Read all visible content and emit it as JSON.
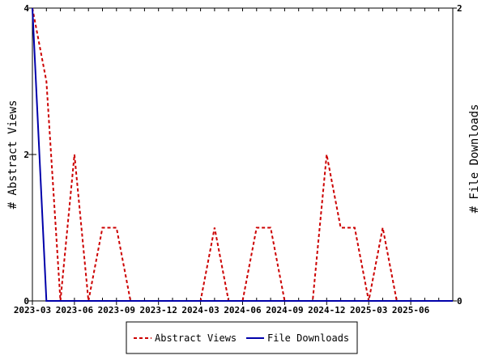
{
  "chart_data": {
    "type": "line",
    "title": "",
    "xlabel": "",
    "ylabel": "# Abstract Views",
    "y2label": "# File Downloads",
    "x_ticks": [
      "2023-03",
      "2023-06",
      "2023-09",
      "2023-12",
      "2024-03",
      "2024-06",
      "2024-09",
      "2024-12",
      "2025-03",
      "2025-06"
    ],
    "x": [
      "2023-03",
      "2023-04",
      "2023-05",
      "2023-06",
      "2023-07",
      "2023-08",
      "2023-09",
      "2023-10",
      "2023-11",
      "2023-12",
      "2024-01",
      "2024-02",
      "2024-03",
      "2024-04",
      "2024-05",
      "2024-06",
      "2024-07",
      "2024-08",
      "2024-09",
      "2024-10",
      "2024-11",
      "2024-12",
      "2025-01",
      "2025-02",
      "2025-03",
      "2025-04",
      "2025-05",
      "2025-06",
      "2025-07",
      "2025-08",
      "2025-09"
    ],
    "ylim": [
      0,
      4
    ],
    "y_ticks": [
      0,
      2,
      4
    ],
    "y2lim": [
      0,
      2
    ],
    "y2_ticks": [
      0,
      2
    ],
    "legend_position": "bottom",
    "series": [
      {
        "name": "Abstract Views",
        "axis": "left",
        "color": "#cc0000",
        "style": "dashed",
        "values": [
          4,
          3,
          0,
          2,
          0,
          1,
          1,
          0,
          0,
          0,
          0,
          0,
          0,
          1,
          0,
          0,
          1,
          1,
          0,
          0,
          0,
          2,
          1,
          1,
          0,
          1,
          0,
          0,
          0,
          0,
          0
        ]
      },
      {
        "name": "File Downloads",
        "axis": "right",
        "color": "#0000aa",
        "style": "solid",
        "values": [
          2,
          0,
          0,
          0,
          0,
          0,
          0,
          0,
          0,
          0,
          0,
          0,
          0,
          0,
          0,
          0,
          0,
          0,
          0,
          0,
          0,
          0,
          0,
          0,
          0,
          0,
          0,
          0,
          0,
          0,
          0
        ]
      }
    ]
  }
}
